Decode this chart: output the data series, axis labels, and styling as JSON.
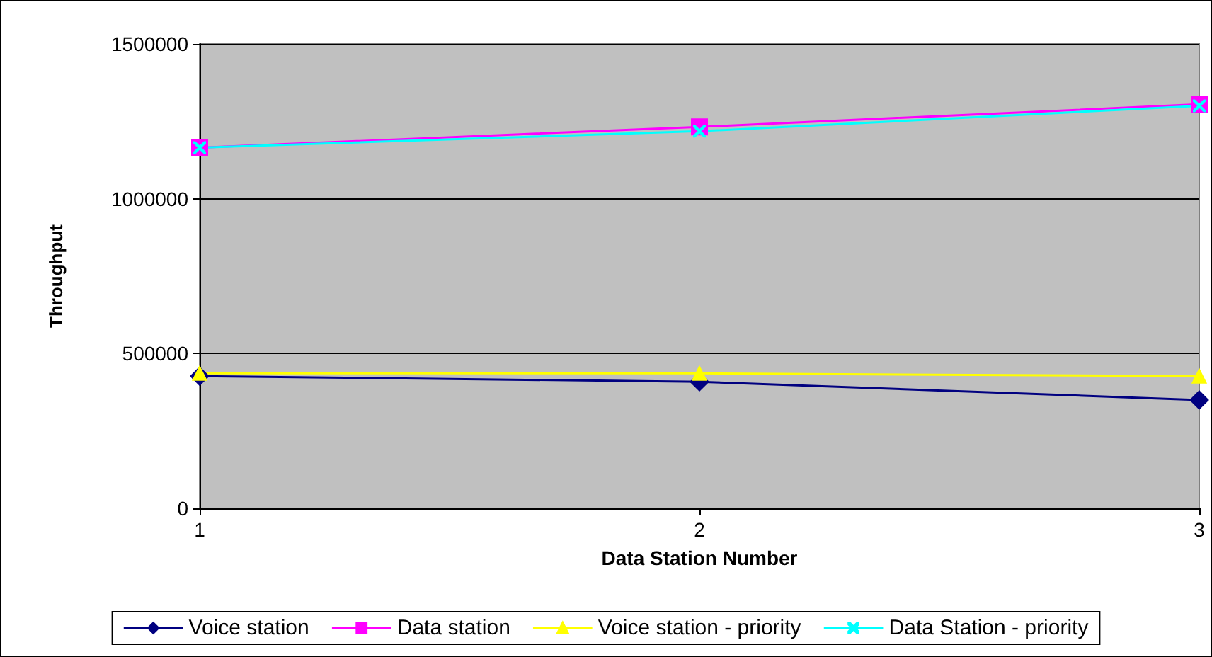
{
  "chart_data": {
    "type": "line",
    "xlabel": "Data Station Number",
    "ylabel": "Throughput",
    "x": [
      1,
      2,
      3
    ],
    "xlim": [
      1,
      3
    ],
    "xticks": [
      1,
      2,
      3
    ],
    "ylim": [
      0,
      1500000
    ],
    "yticks": [
      0,
      500000,
      1000000,
      1500000
    ],
    "grid": "y",
    "legend": "bottom",
    "series": [
      {
        "name": "Voice station",
        "color": "#000080",
        "marker": "diamond",
        "values": [
          427000,
          409000,
          350000
        ]
      },
      {
        "name": "Data station",
        "color": "#ff00ff",
        "marker": "square",
        "values": [
          1165000,
          1232000,
          1305000
        ]
      },
      {
        "name": "Voice station - priority",
        "color": "#ffff00",
        "marker": "triangle",
        "values": [
          436000,
          436000,
          427000
        ]
      },
      {
        "name": "Data Station - priority",
        "color": "#00ffff",
        "marker": "cross",
        "values": [
          1165000,
          1218000,
          1300000
        ]
      }
    ]
  }
}
